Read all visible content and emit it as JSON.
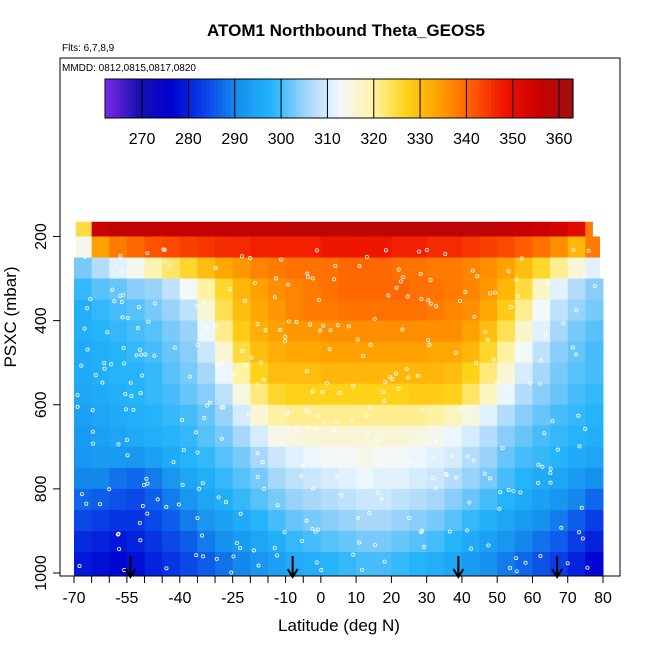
{
  "chart_data": {
    "type": "heatmap",
    "title": "ATOM1 Northbound Theta_GEOS5",
    "annotations": {
      "flights": "Flts: 6,7,8,9",
      "dates": "MMDD: 0812,0815,0817,0820"
    },
    "xlabel": "Latitude (deg N)",
    "ylabel": "PSXC (mbar)",
    "xlim": [
      -70,
      80
    ],
    "ylim": [
      1000,
      150
    ],
    "y_reversed": true,
    "x_ticks": [
      "-70",
      "-55",
      "-40",
      "-25",
      "-10",
      "0",
      "10",
      "20",
      "30",
      "40",
      "50",
      "60",
      "70",
      "80"
    ],
    "x_tick_values": [
      -70,
      -55,
      -40,
      -25,
      -10,
      0,
      10,
      20,
      30,
      40,
      50,
      60,
      70,
      80
    ],
    "x_minor_ticks": [
      -65,
      -60,
      -50,
      -45,
      -35,
      -30,
      -20,
      -15,
      -5
    ],
    "y_ticks": [
      "200",
      "400",
      "600",
      "800",
      "1000"
    ],
    "y_tick_values": [
      200,
      400,
      600,
      800,
      1000
    ],
    "colorbar": {
      "min": 262,
      "max": 363,
      "ticks": [
        "270",
        "280",
        "290",
        "300",
        "310",
        "320",
        "330",
        "340",
        "350",
        "360"
      ],
      "tick_values": [
        270,
        280,
        290,
        300,
        310,
        320,
        330,
        340,
        350,
        360
      ],
      "colors": [
        "#7b2ae8",
        "#1a0fb0",
        "#0000d0",
        "#0a44e8",
        "#1590ee",
        "#25b4fa",
        "#9fd4fa",
        "#f2f8ff",
        "#fff3a8",
        "#ffd21a",
        "#ffa000",
        "#ff5a00",
        "#ee1000",
        "#c80000",
        "#a01010"
      ]
    },
    "latitudes": [
      -70,
      -65,
      -60,
      -55,
      -50,
      -45,
      -40,
      -35,
      -30,
      -25,
      -20,
      -15,
      -10,
      -5,
      0,
      5,
      10,
      15,
      20,
      25,
      30,
      35,
      40,
      45,
      50,
      55,
      60,
      65,
      70,
      75
    ],
    "pressure_levels": [
      175,
      225,
      275,
      325,
      375,
      425,
      475,
      525,
      575,
      625,
      675,
      725,
      775,
      825,
      875,
      925,
      975
    ],
    "theta_values": [
      [
        325,
        355,
        357,
        357,
        357,
        356,
        357,
        357,
        357,
        357,
        357,
        357,
        358,
        358,
        358,
        358,
        358,
        358,
        358,
        358,
        358,
        358,
        358,
        358,
        357,
        356,
        355,
        354,
        351,
        338
      ],
      [
        314,
        334,
        338,
        340,
        342,
        343,
        344,
        345,
        346,
        346,
        347,
        347,
        347,
        347,
        348,
        348,
        348,
        348,
        347,
        347,
        346,
        346,
        345,
        344,
        343,
        341,
        339,
        336,
        331,
        338
      ],
      [
        303,
        307,
        311,
        314,
        319,
        323,
        326,
        330,
        333,
        335,
        337,
        338,
        339,
        339,
        339,
        340,
        340,
        340,
        339,
        339,
        338,
        338,
        337,
        336,
        334,
        330,
        326,
        321,
        316,
        311
      ],
      [
        299,
        301,
        302,
        304,
        305,
        308,
        313,
        320,
        326,
        331,
        334,
        336,
        337,
        338,
        339,
        340,
        340,
        340,
        340,
        339,
        339,
        338,
        337,
        335,
        331,
        325,
        317,
        311,
        307,
        304
      ],
      [
        297,
        299,
        300,
        301,
        303,
        305,
        308,
        316,
        324,
        330,
        333,
        335,
        337,
        338,
        338,
        339,
        339,
        339,
        339,
        339,
        338,
        337,
        336,
        333,
        328,
        321,
        313,
        308,
        305,
        303
      ],
      [
        297,
        298,
        299,
        300,
        301,
        303,
        305,
        312,
        321,
        328,
        332,
        334,
        335,
        335,
        336,
        336,
        336,
        336,
        336,
        336,
        336,
        336,
        334,
        330,
        324,
        317,
        311,
        306,
        303,
        301
      ],
      [
        296,
        297,
        298,
        299,
        300,
        302,
        304,
        309,
        316,
        325,
        330,
        332,
        333,
        333,
        334,
        334,
        334,
        334,
        334,
        334,
        333,
        333,
        331,
        326,
        320,
        313,
        308,
        304,
        302,
        300
      ],
      [
        296,
        297,
        298,
        298,
        299,
        301,
        303,
        306,
        312,
        320,
        327,
        330,
        330,
        330,
        331,
        331,
        331,
        331,
        331,
        331,
        331,
        330,
        327,
        322,
        316,
        310,
        306,
        303,
        301,
        300
      ],
      [
        295,
        296,
        297,
        298,
        299,
        300,
        302,
        304,
        308,
        315,
        322,
        326,
        327,
        327,
        327,
        327,
        327,
        327,
        327,
        328,
        328,
        327,
        323,
        318,
        312,
        307,
        304,
        302,
        300,
        299
      ],
      [
        294,
        295,
        296,
        297,
        298,
        299,
        300,
        302,
        305,
        310,
        316,
        320,
        321,
        321,
        321,
        321,
        321,
        321,
        321,
        321,
        320,
        318,
        315,
        311,
        307,
        304,
        302,
        300,
        299,
        298
      ],
      [
        293,
        294,
        295,
        296,
        297,
        298,
        299,
        301,
        303,
        306,
        310,
        314,
        315,
        316,
        316,
        316,
        316,
        316,
        316,
        315,
        314,
        312,
        310,
        307,
        304,
        302,
        300,
        299,
        298,
        297
      ],
      [
        292,
        293,
        293,
        292,
        294,
        296,
        298,
        299,
        301,
        303,
        306,
        309,
        311,
        312,
        313,
        313,
        314,
        313,
        313,
        312,
        311,
        310,
        307,
        305,
        302,
        300,
        299,
        298,
        296,
        295
      ],
      [
        290,
        290,
        288,
        287,
        289,
        292,
        295,
        297,
        299,
        301,
        303,
        306,
        308,
        309,
        310,
        311,
        312,
        311,
        311,
        310,
        309,
        307,
        305,
        303,
        300,
        298,
        296,
        295,
        293,
        291
      ],
      [
        287,
        286,
        285,
        284,
        286,
        289,
        292,
        295,
        297,
        299,
        301,
        303,
        305,
        306,
        307,
        308,
        309,
        309,
        308,
        307,
        306,
        304,
        302,
        300,
        298,
        296,
        294,
        292,
        290,
        287
      ],
      [
        284,
        283,
        282,
        282,
        284,
        286,
        289,
        292,
        294,
        296,
        298,
        300,
        302,
        303,
        304,
        305,
        306,
        306,
        305,
        304,
        303,
        301,
        299,
        297,
        295,
        293,
        291,
        289,
        286,
        283
      ],
      [
        281,
        280,
        279,
        280,
        282,
        284,
        286,
        289,
        291,
        293,
        295,
        297,
        299,
        300,
        301,
        302,
        303,
        303,
        302,
        301,
        300,
        298,
        296,
        294,
        292,
        290,
        288,
        286,
        283,
        280
      ],
      [
        279,
        278,
        277,
        278,
        280,
        282,
        284,
        286,
        288,
        290,
        292,
        294,
        296,
        297,
        298,
        299,
        300,
        300,
        299,
        298,
        297,
        295,
        293,
        291,
        289,
        287,
        285,
        283,
        280,
        277
      ]
    ],
    "flight_arrows_latitude": [
      -54,
      -8,
      39,
      67
    ],
    "observation_points_note": "white open circles along flight tracks"
  }
}
